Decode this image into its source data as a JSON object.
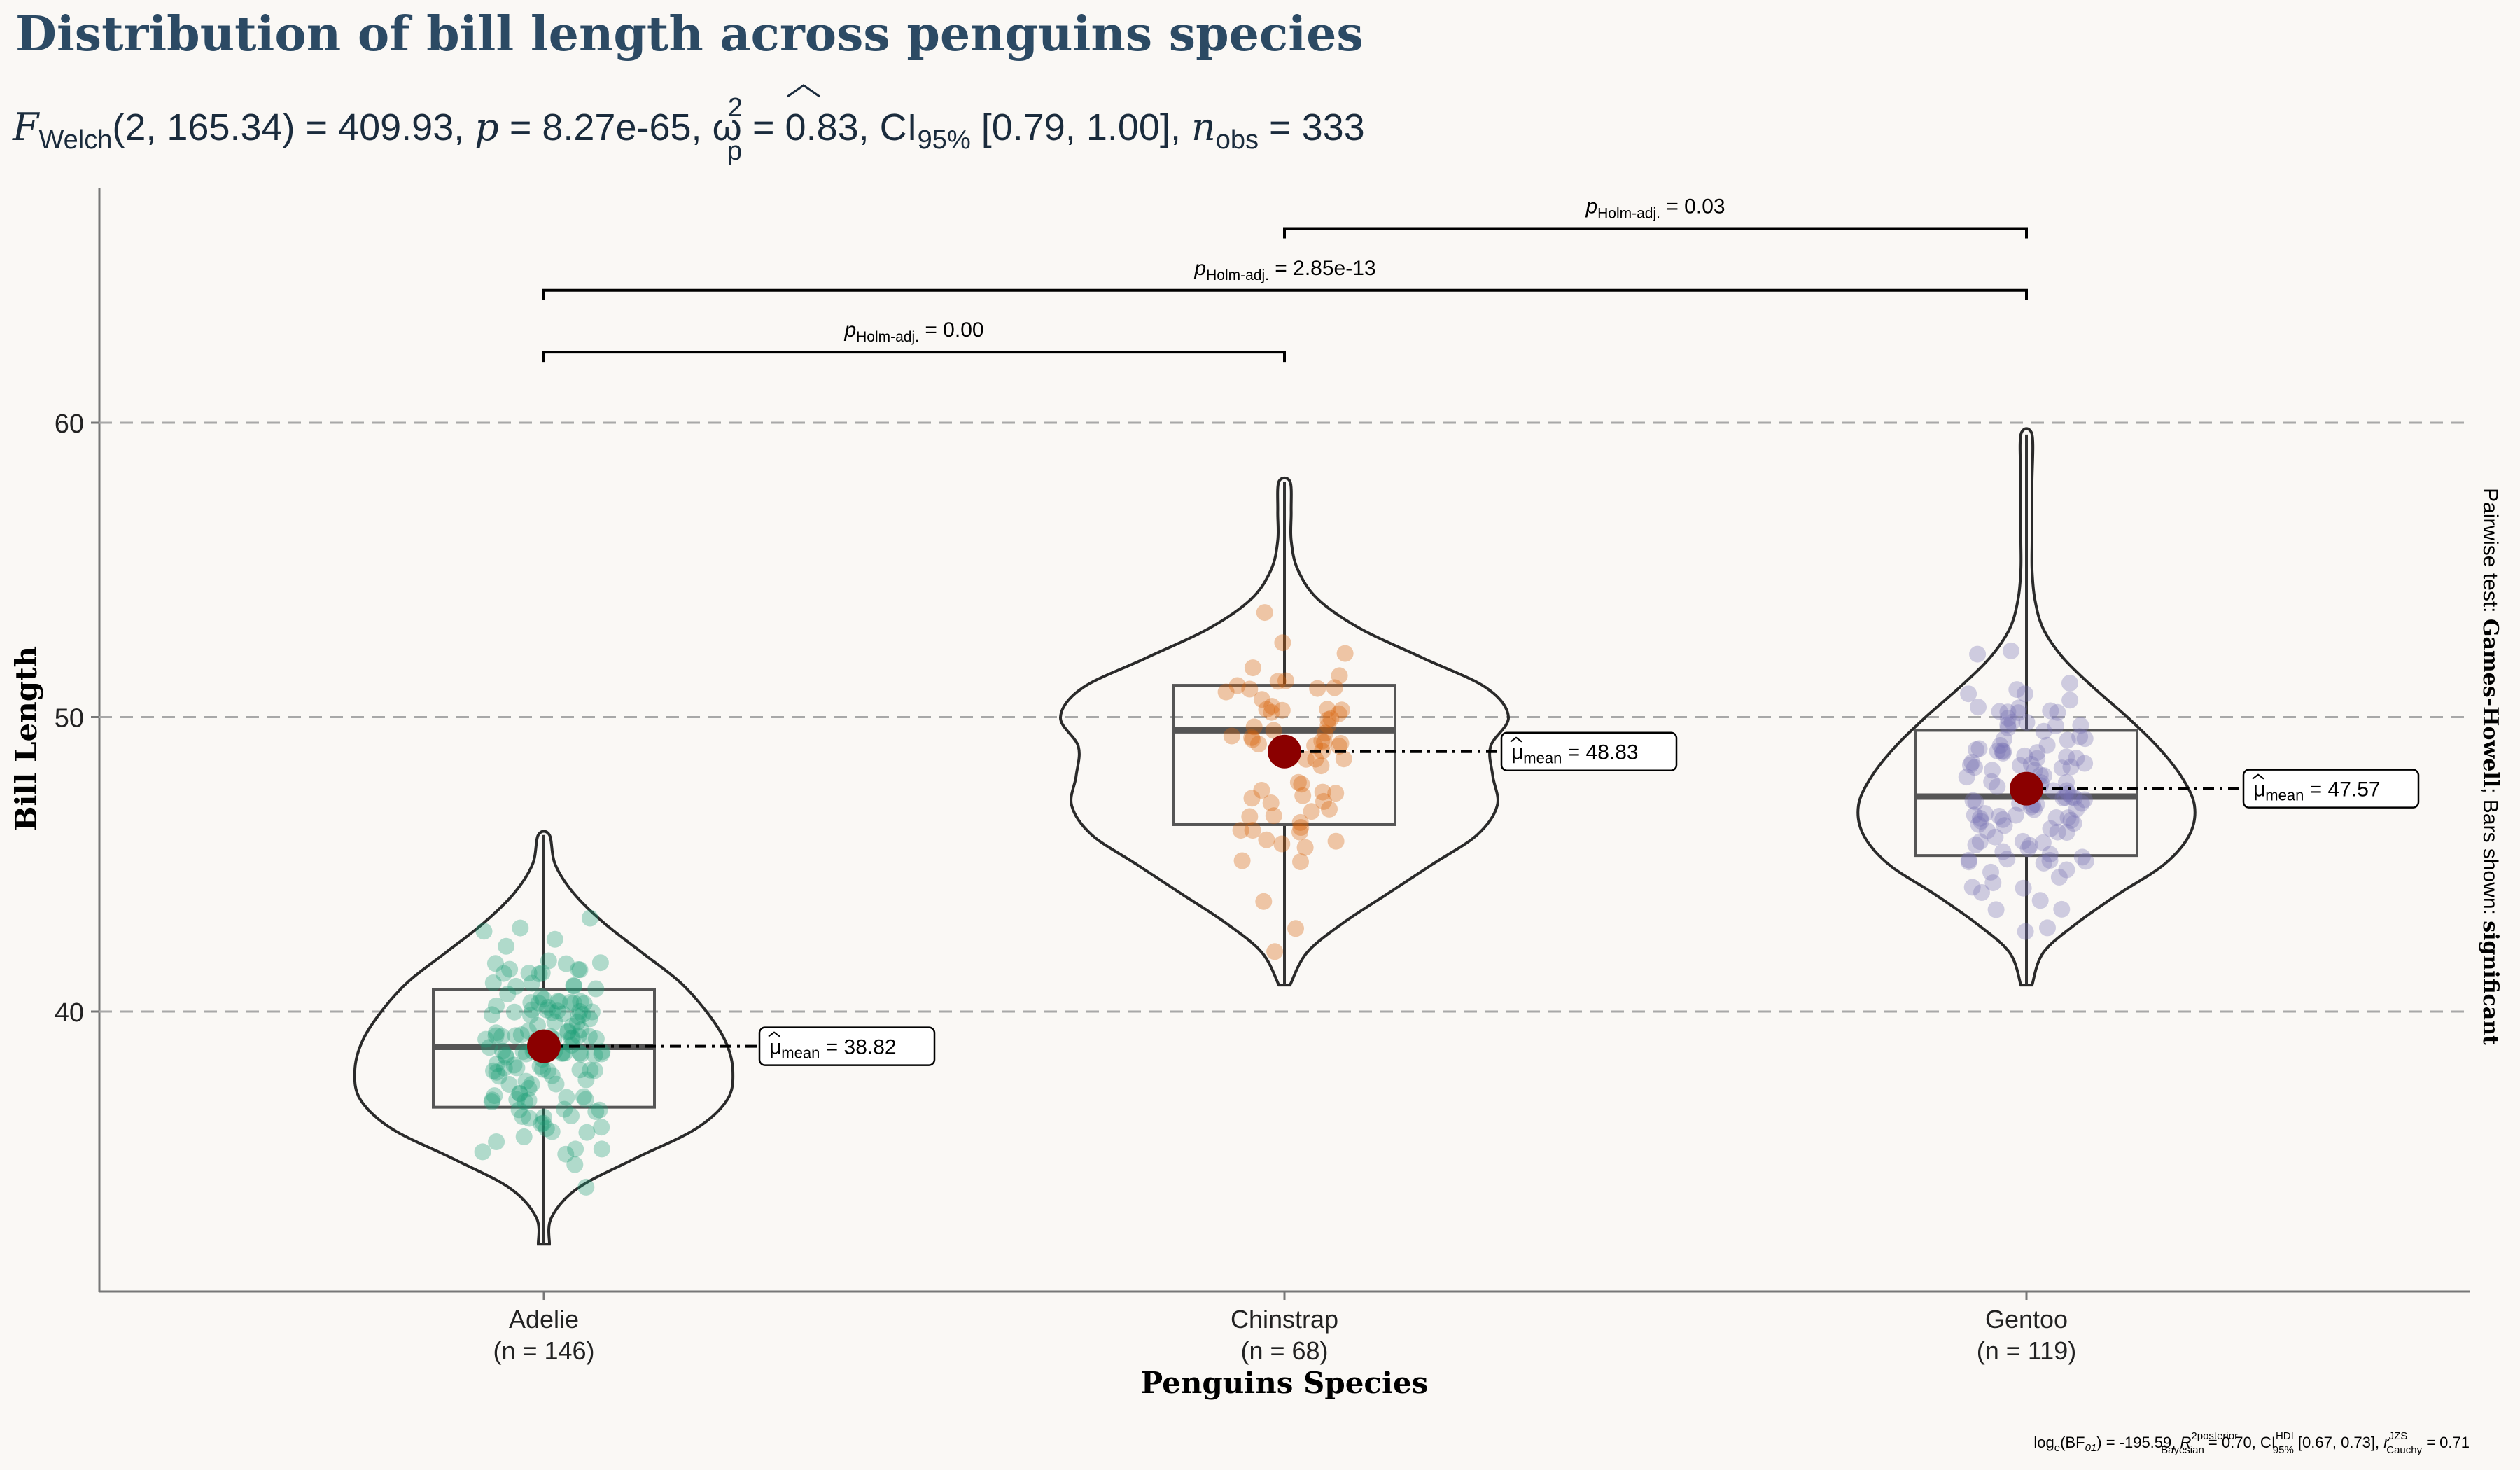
{
  "chart_data": {
    "type": "violin",
    "title": "Distribution of bill length across penguins species",
    "subtitle": {
      "stat_symbol": "F",
      "stat_sub": "Welch",
      "stat_args": "(2, 165.34)",
      "stat_value": " = 409.93, ",
      "p_symbol": "p",
      "p_value": " = 8.27e-65, ",
      "es_symbol": "ω",
      "es_sup": "2",
      "es_sub": "p",
      "es_value": " = 0.83, CI",
      "ci_sub": "95%",
      "ci_value": " [0.79, 1.00], ",
      "n_symbol": "n",
      "n_sub": "obs",
      "n_value": " = 333"
    },
    "xlabel": "Penguins Species",
    "ylabel": "Bill Length",
    "yticks": [
      40,
      50,
      60
    ],
    "ylim": [
      30.5,
      68
    ],
    "grid": "horizontal dashed at y ticks",
    "categories": [
      {
        "name": "Adelie",
        "n_label": "(n = 146)",
        "color": "#1B9E77",
        "mean": 38.82,
        "mean_label": " = 38.82",
        "q1": 36.75,
        "median": 38.8,
        "q3": 40.75,
        "min": 32.1,
        "max": 46.0
      },
      {
        "name": "Chinstrap",
        "n_label": "(n = 68)",
        "color": "#D95F02",
        "mean": 48.83,
        "mean_label": " = 48.83",
        "q1": 46.35,
        "median": 49.55,
        "q3": 51.08,
        "min": 40.9,
        "max": 58.0
      },
      {
        "name": "Gentoo",
        "n_label": "(n = 119)",
        "color": "#7570B3",
        "mean": 47.57,
        "mean_label": " = 47.57",
        "q1": 45.3,
        "median": 47.3,
        "q3": 49.55,
        "min": 40.9,
        "max": 59.6
      }
    ],
    "mean_symbol": "μ",
    "mean_sub": "mean",
    "pairwise": [
      {
        "from": 0,
        "to": 1,
        "y": 62.4,
        "p_symbol": "p",
        "p_sub": "Holm-adj.",
        "p_value": " = 0.00"
      },
      {
        "from": 0,
        "to": 2,
        "y": 64.5,
        "p_symbol": "p",
        "p_sub": "Holm-adj.",
        "p_value": " = 2.85e-13"
      },
      {
        "from": 1,
        "to": 2,
        "y": 66.6,
        "p_symbol": "p",
        "p_sub": "Holm-adj.",
        "p_value": " = 0.03"
      }
    ],
    "side_caption": {
      "prefix": "Pairwise test: ",
      "test": "Games-Howell",
      "middle": "; Bars shown: ",
      "shown": "significant"
    },
    "bayes_caption": {
      "bf_text": "log",
      "bf_sub": "e",
      "bf_rest": "(BF",
      "bf_sub2": "01",
      "bf_value": ") = -195.59, ",
      "r_symbol": "R",
      "r_sup": "2",
      "r_sup2": "posterior",
      "r_sub": "Bayesian",
      "r_value": " = 0.70, CI",
      "ci_sup": "HDI",
      "ci_sub": "95%",
      "ci_value": " [0.67, 0.73], ",
      "rc_symbol": "r",
      "rc_sup": "JZS",
      "rc_sub": "Cauchy",
      "rc_value": " = 0.71"
    }
  }
}
